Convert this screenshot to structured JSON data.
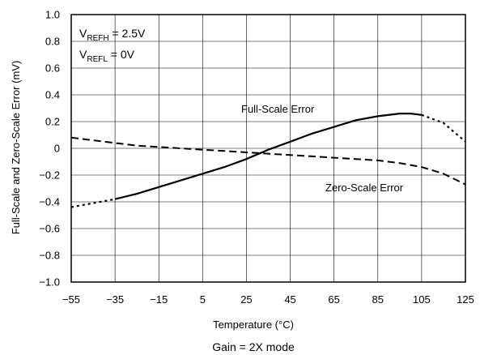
{
  "chart_data": {
    "type": "line",
    "title": "",
    "caption": "Gain = 2X mode",
    "xlabel": "Temperature (°C)",
    "ylabel": "Full-Scale and Zero-Scale Error (mV)",
    "xlim": [
      -55,
      125
    ],
    "ylim": [
      -1.0,
      1.0
    ],
    "x_ticks": [
      "−55",
      "−35",
      "−15",
      "5",
      "25",
      "45",
      "65",
      "85",
      "105",
      "125"
    ],
    "x_tick_values": [
      -55,
      -35,
      -15,
      5,
      25,
      45,
      65,
      85,
      105,
      125
    ],
    "y_ticks": [
      "1.0",
      "0.8",
      "0.6",
      "0.4",
      "0.2",
      "0",
      "−0.2",
      "−0.4",
      "−0.6",
      "−0.8",
      "−1.0"
    ],
    "y_tick_values": [
      1.0,
      0.8,
      0.6,
      0.4,
      0.2,
      0,
      -0.2,
      -0.4,
      -0.6,
      -0.8,
      -1.0
    ],
    "grid": true,
    "conditions": {
      "vrefh_main": "V",
      "vrefh_sub": "REFH",
      "vrefh_value": " = 2.5V",
      "vrefl_main": "V",
      "vrefl_sub": "REFL",
      "vrefl_value": " = 0V"
    },
    "series": [
      {
        "name": "Full-Scale Error",
        "x": [
          -55,
          -45,
          -35,
          -25,
          -15,
          -5,
          5,
          15,
          25,
          35,
          45,
          55,
          65,
          75,
          85,
          95,
          100,
          105,
          115,
          125
        ],
        "y": [
          -0.44,
          -0.41,
          -0.38,
          -0.34,
          -0.29,
          -0.24,
          -0.19,
          -0.14,
          -0.08,
          -0.01,
          0.05,
          0.11,
          0.16,
          0.21,
          0.24,
          0.26,
          0.26,
          0.25,
          0.19,
          0.05
        ],
        "extrapolated_x_ranges": [
          [
            -55,
            -35
          ],
          [
            105,
            125
          ]
        ]
      },
      {
        "name": "Zero-Scale Error",
        "x": [
          -55,
          -45,
          -35,
          -25,
          -15,
          -5,
          5,
          15,
          25,
          35,
          45,
          55,
          65,
          75,
          85,
          95,
          105,
          115,
          125
        ],
        "y": [
          0.08,
          0.06,
          0.04,
          0.02,
          0.01,
          0.0,
          -0.01,
          -0.02,
          -0.03,
          -0.04,
          -0.05,
          -0.06,
          -0.07,
          -0.08,
          -0.09,
          -0.11,
          -0.14,
          -0.19,
          -0.27
        ],
        "dashed": true
      }
    ]
  }
}
